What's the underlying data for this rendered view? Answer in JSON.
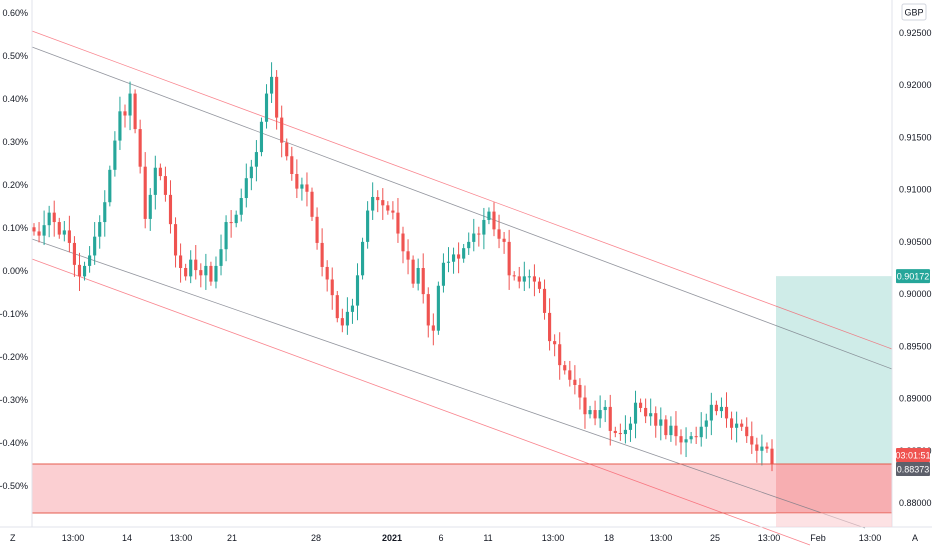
{
  "currency_button": "GBP",
  "left_axis": {
    "labels": [
      "0.60%",
      "0.50%",
      "0.40%",
      "0.30%",
      "0.20%",
      "0.10%",
      "0.00%",
      "-0.10%",
      "-0.20%",
      "-0.30%",
      "-0.40%",
      "-0.50%"
    ],
    "values": [
      0.6,
      0.5,
      0.4,
      0.3,
      0.2,
      0.1,
      0.0,
      -0.1,
      -0.2,
      -0.3,
      -0.4,
      -0.5
    ]
  },
  "right_axis": {
    "labels": [
      "0.92500",
      "0.92000",
      "0.91500",
      "0.91000",
      "0.90500",
      "0.90000",
      "0.89500",
      "0.89000",
      "0.88500",
      "0.88000"
    ],
    "values": [
      0.925,
      0.92,
      0.915,
      0.91,
      0.905,
      0.9,
      0.895,
      0.89,
      0.885,
      0.88
    ]
  },
  "time_axis": {
    "labels": [
      "13:00",
      "14",
      "13:00",
      "21",
      "28",
      "2021",
      "6",
      "11",
      "13:00",
      "18",
      "13:00",
      "25",
      "13:00",
      "Feb",
      "13:00"
    ],
    "bold": [
      false,
      false,
      false,
      false,
      false,
      true,
      false,
      false,
      false,
      false,
      false,
      false,
      false,
      false,
      false
    ]
  },
  "corner_left": "Z",
  "corner_right": "A",
  "price_badges": {
    "target": {
      "text": "0.90172",
      "color": "#26a69a"
    },
    "countdown": {
      "text": "03:01:51",
      "color": "#ef5350"
    },
    "last": {
      "text": "0.88373",
      "color": "#5d606b"
    }
  },
  "colors": {
    "up": "#26a69a",
    "down": "#ef5350",
    "channel_mid": "#787b86",
    "channel_outer": "#f7525f",
    "stop_zone": "#fbcfd2",
    "target_zone": "#cfece8",
    "stop_line": "#e45b4d"
  },
  "chart_data": {
    "type": "candlestick",
    "symbol_currency": "GBP",
    "y_range": [
      0.87752,
      0.92798
    ],
    "target_price": 0.90172,
    "last_price": 0.88373,
    "stop_zone_top": 0.88373,
    "stop_zone_bottom": 0.87904,
    "time_labels": [
      "13:00",
      "14",
      "13:00",
      "21",
      "28",
      "2021",
      "6",
      "11",
      "13:00",
      "18",
      "13:00",
      "25",
      "13:00",
      "Feb",
      "13:00"
    ],
    "close_series": [
      0.906,
      0.9056,
      0.9066,
      0.9078,
      0.9069,
      0.9057,
      0.9061,
      0.9049,
      0.9028,
      0.9017,
      0.9027,
      0.9037,
      0.9055,
      0.9069,
      0.9088,
      0.9119,
      0.9147,
      0.9175,
      0.9171,
      0.9192,
      0.9158,
      0.9122,
      0.9072,
      0.9095,
      0.9121,
      0.9113,
      0.9095,
      0.9067,
      0.9037,
      0.9025,
      0.9017,
      0.9033,
      0.9023,
      0.9018,
      0.9027,
      0.9012,
      0.9027,
      0.9043,
      0.9069,
      0.9068,
      0.9076,
      0.9092,
      0.9111,
      0.9122,
      0.9136,
      0.9165,
      0.9192,
      0.9208,
      0.9169,
      0.9145,
      0.9132,
      0.9115,
      0.9101,
      0.9105,
      0.9098,
      0.9074,
      0.9049,
      0.9026,
      0.9014,
      0.8999,
      0.8977,
      0.897,
      0.8983,
      0.8989,
      0.9018,
      0.905,
      0.908,
      0.9093,
      0.909,
      0.9085,
      0.908,
      0.9078,
      0.9058,
      0.9041,
      0.9033,
      0.901,
      0.9025,
      0.9,
      0.897,
      0.8965,
      0.9008,
      0.903,
      0.9031,
      0.9038,
      0.9034,
      0.9044,
      0.905,
      0.9058,
      0.9057,
      0.9071,
      0.9079,
      0.9062,
      0.9053,
      0.905,
      0.9018,
      0.9017,
      0.9012,
      0.9017,
      0.9017,
      0.9012,
      0.9005,
      0.8982,
      0.8955,
      0.8952,
      0.8932,
      0.8927,
      0.8918,
      0.8913,
      0.8901,
      0.8885,
      0.8889,
      0.8881,
      0.8889,
      0.8892,
      0.8869,
      0.8867,
      0.8866,
      0.887,
      0.8876,
      0.8896,
      0.8891,
      0.8883,
      0.8886,
      0.8874,
      0.888,
      0.8865,
      0.8874,
      0.8864,
      0.8858,
      0.8861,
      0.8864,
      0.8863,
      0.8873,
      0.8879,
      0.8894,
      0.8888,
      0.8892,
      0.8881,
      0.8872,
      0.8876,
      0.8873,
      0.8864,
      0.8856,
      0.885,
      0.8854,
      0.8852,
      0.8837
    ]
  }
}
